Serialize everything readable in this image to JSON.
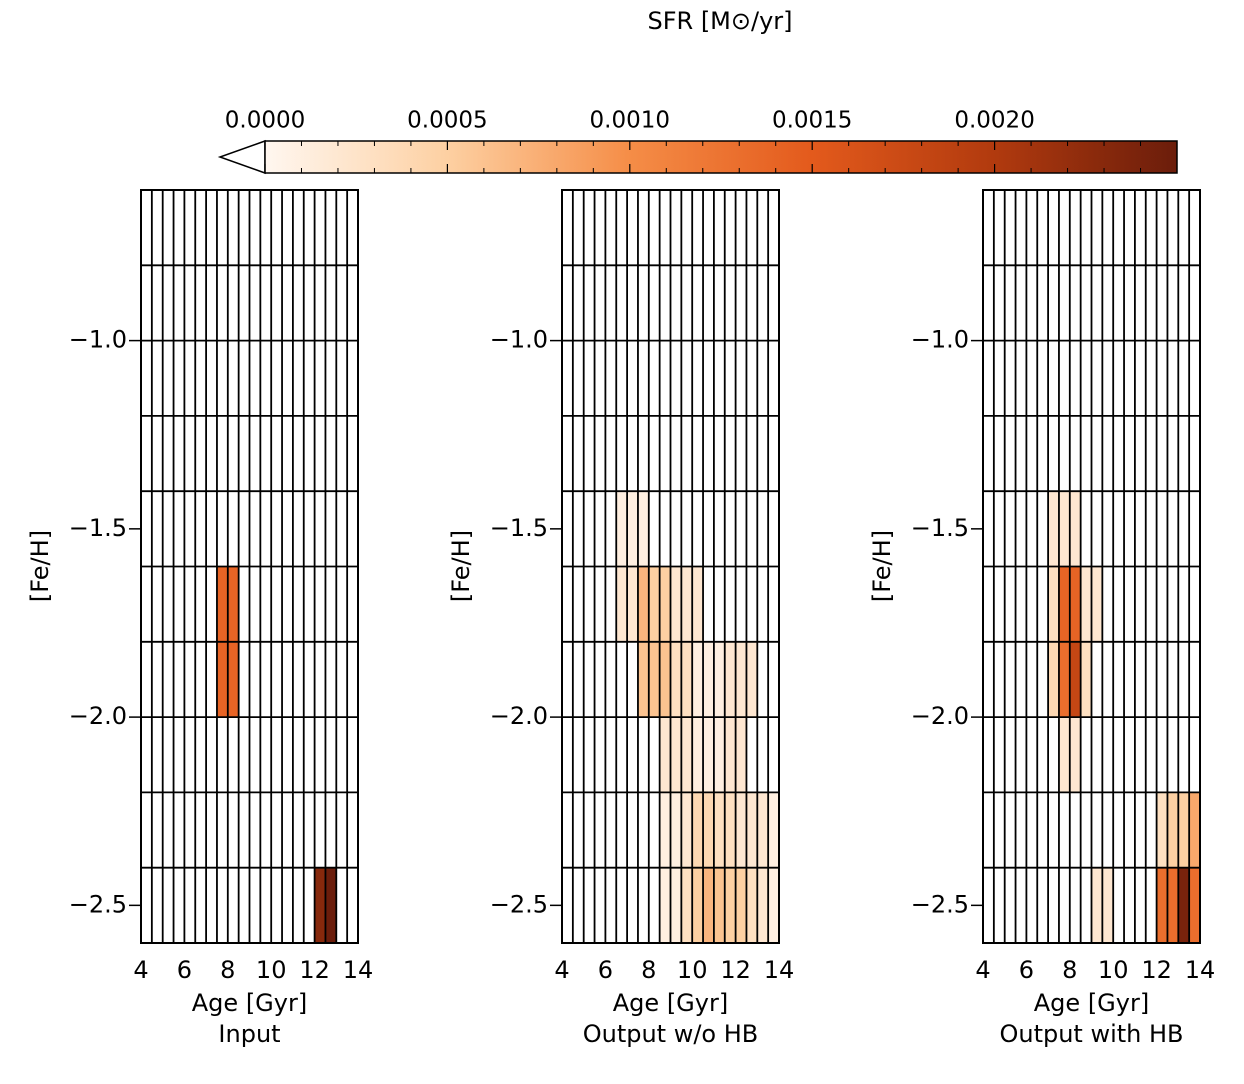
{
  "chart_data": {
    "type": "heatmap",
    "colorbar": {
      "title": "SFR [M⊙/yr]",
      "range": [
        0.0,
        0.0025
      ],
      "ticks": [
        0.0,
        0.0005,
        0.001,
        0.0015,
        0.002
      ],
      "tick_labels": [
        "0.0000",
        "0.0005",
        "0.0010",
        "0.0015",
        "0.0020"
      ],
      "extend": "min",
      "color_stops": [
        "#fff7f0",
        "#fdd0a2",
        "#f58d47",
        "#e35a1c",
        "#b13a0e",
        "#6b1d0b"
      ]
    },
    "x_axis": {
      "label": "Age [Gyr]",
      "range": [
        4,
        14
      ],
      "ticks": [
        4,
        6,
        8,
        10,
        12,
        14
      ],
      "tick_labels": [
        "4",
        "6",
        "8",
        "10",
        "12",
        "14"
      ],
      "bin_width": 0.5
    },
    "y_axis": {
      "label": "[Fe/H]",
      "range": [
        -2.6,
        -0.6
      ],
      "ticks": [
        -1.0,
        -1.5,
        -2.0,
        -2.5
      ],
      "tick_labels": [
        "−1.0",
        "−1.5",
        "−2.0",
        "−2.5"
      ],
      "bin_height": 0.2
    },
    "panels": [
      {
        "title": "Input",
        "cells": [
          {
            "age": [
              7.5,
              8.5
            ],
            "feh": [
              -2.0,
              -1.6
            ],
            "sfr": 0.0014
          },
          {
            "age": [
              12.0,
              12.5
            ],
            "feh": [
              -2.6,
              -2.4
            ],
            "sfr": 0.0023
          },
          {
            "age": [
              12.5,
              13.0
            ],
            "feh": [
              -2.6,
              -2.4
            ],
            "sfr": 0.0025
          }
        ]
      },
      {
        "title": "Output w/o HB",
        "cells": [
          {
            "age": [
              6.5,
              8.0
            ],
            "feh": [
              -1.6,
              -1.4
            ],
            "sfr": 0.0001
          },
          {
            "age": [
              6.5,
              7.5
            ],
            "feh": [
              -1.8,
              -1.6
            ],
            "sfr": 0.0002
          },
          {
            "age": [
              7.5,
              8.0
            ],
            "feh": [
              -1.8,
              -1.6
            ],
            "sfr": 0.0007
          },
          {
            "age": [
              8.0,
              9.0
            ],
            "feh": [
              -1.8,
              -1.6
            ],
            "sfr": 0.0005
          },
          {
            "age": [
              9.0,
              10.5
            ],
            "feh": [
              -1.8,
              -1.6
            ],
            "sfr": 0.0002
          },
          {
            "age": [
              7.5,
              9.0
            ],
            "feh": [
              -2.0,
              -1.8
            ],
            "sfr": 0.0006
          },
          {
            "age": [
              9.0,
              10.0
            ],
            "feh": [
              -2.0,
              -1.8
            ],
            "sfr": 0.0003
          },
          {
            "age": [
              10.0,
              11.5
            ],
            "feh": [
              -2.0,
              -1.8
            ],
            "sfr": 0.0001
          },
          {
            "age": [
              11.5,
              13.0
            ],
            "feh": [
              -2.0,
              -1.8
            ],
            "sfr": 0.0002
          },
          {
            "age": [
              8.5,
              10.0
            ],
            "feh": [
              -2.2,
              -2.0
            ],
            "sfr": 0.0002
          },
          {
            "age": [
              10.0,
              11.5
            ],
            "feh": [
              -2.2,
              -2.0
            ],
            "sfr": 0.0001
          },
          {
            "age": [
              11.5,
              12.5
            ],
            "feh": [
              -2.2,
              -2.0
            ],
            "sfr": 0.0002
          },
          {
            "age": [
              8.5,
              9.5
            ],
            "feh": [
              -2.4,
              -2.2
            ],
            "sfr": 0.0001
          },
          {
            "age": [
              9.5,
              10.0
            ],
            "feh": [
              -2.4,
              -2.2
            ],
            "sfr": 0.0002
          },
          {
            "age": [
              10.0,
              11.0
            ],
            "feh": [
              -2.4,
              -2.2
            ],
            "sfr": 0.0004
          },
          {
            "age": [
              11.0,
              12.0
            ],
            "feh": [
              -2.4,
              -2.2
            ],
            "sfr": 0.0003
          },
          {
            "age": [
              12.0,
              13.5
            ],
            "feh": [
              -2.4,
              -2.2
            ],
            "sfr": 0.0002
          },
          {
            "age": [
              13.5,
              14.0
            ],
            "feh": [
              -2.4,
              -2.2
            ],
            "sfr": 0.0001
          },
          {
            "age": [
              8.5,
              9.5
            ],
            "feh": [
              -2.6,
              -2.4
            ],
            "sfr": 0.0001
          },
          {
            "age": [
              9.5,
              10.0
            ],
            "feh": [
              -2.6,
              -2.4
            ],
            "sfr": 0.0003
          },
          {
            "age": [
              10.0,
              10.5
            ],
            "feh": [
              -2.6,
              -2.4
            ],
            "sfr": 0.0005
          },
          {
            "age": [
              10.5,
              11.0
            ],
            "feh": [
              -2.6,
              -2.4
            ],
            "sfr": 0.0007
          },
          {
            "age": [
              11.0,
              11.5
            ],
            "feh": [
              -2.6,
              -2.4
            ],
            "sfr": 0.0006
          },
          {
            "age": [
              11.5,
              12.5
            ],
            "feh": [
              -2.6,
              -2.4
            ],
            "sfr": 0.0005
          },
          {
            "age": [
              12.5,
              13.0
            ],
            "feh": [
              -2.6,
              -2.4
            ],
            "sfr": 0.0003
          },
          {
            "age": [
              13.0,
              13.5
            ],
            "feh": [
              -2.6,
              -2.4
            ],
            "sfr": 0.0002
          },
          {
            "age": [
              13.5,
              14.0
            ],
            "feh": [
              -2.6,
              -2.4
            ],
            "sfr": 0.0001
          }
        ]
      },
      {
        "title": "Output with HB",
        "cells": [
          {
            "age": [
              7.0,
              8.5
            ],
            "feh": [
              -1.6,
              -1.4
            ],
            "sfr": 0.0002
          },
          {
            "age": [
              7.0,
              7.5
            ],
            "feh": [
              -1.8,
              -1.6
            ],
            "sfr": 0.0003
          },
          {
            "age": [
              7.5,
              8.5
            ],
            "feh": [
              -1.8,
              -1.6
            ],
            "sfr": 0.0014
          },
          {
            "age": [
              8.5,
              9.5
            ],
            "feh": [
              -1.8,
              -1.6
            ],
            "sfr": 0.0002
          },
          {
            "age": [
              7.0,
              7.5
            ],
            "feh": [
              -2.0,
              -1.8
            ],
            "sfr": 0.0004
          },
          {
            "age": [
              7.5,
              8.0
            ],
            "feh": [
              -2.0,
              -1.8
            ],
            "sfr": 0.0013
          },
          {
            "age": [
              8.0,
              8.5
            ],
            "feh": [
              -2.0,
              -1.8
            ],
            "sfr": 0.0018
          },
          {
            "age": [
              8.5,
              9.0
            ],
            "feh": [
              -2.0,
              -1.8
            ],
            "sfr": 0.0003
          },
          {
            "age": [
              7.5,
              8.5
            ],
            "feh": [
              -2.2,
              -2.0
            ],
            "sfr": 0.0002
          },
          {
            "age": [
              12.0,
              12.5
            ],
            "feh": [
              -2.4,
              -2.2
            ],
            "sfr": 0.0003
          },
          {
            "age": [
              12.5,
              13.5
            ],
            "feh": [
              -2.4,
              -2.2
            ],
            "sfr": 0.0005
          },
          {
            "age": [
              13.5,
              14.0
            ],
            "feh": [
              -2.4,
              -2.2
            ],
            "sfr": 0.0008
          },
          {
            "age": [
              9.0,
              10.0
            ],
            "feh": [
              -2.6,
              -2.4
            ],
            "sfr": 0.0002
          },
          {
            "age": [
              12.0,
              13.0
            ],
            "feh": [
              -2.6,
              -2.4
            ],
            "sfr": 0.0013
          },
          {
            "age": [
              13.0,
              13.5
            ],
            "feh": [
              -2.6,
              -2.4
            ],
            "sfr": 0.0024
          },
          {
            "age": [
              13.5,
              14.0
            ],
            "feh": [
              -2.6,
              -2.4
            ],
            "sfr": 0.0013
          }
        ]
      }
    ]
  }
}
